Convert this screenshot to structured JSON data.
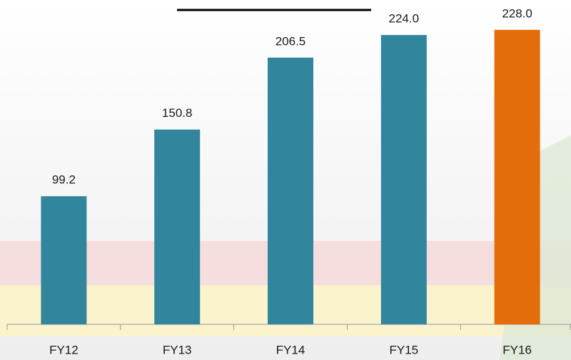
{
  "chart_data": {
    "type": "bar",
    "categories": [
      "FY12",
      "FY13",
      "FY14",
      "FY15",
      "FY16"
    ],
    "values": [
      99.2,
      150.8,
      206.5,
      224,
      228
    ],
    "value_labels": [
      "99.2",
      "150.8",
      "206.5",
      "224.0",
      "228.0"
    ],
    "colors": [
      "#31859c",
      "#31859c",
      "#31859c",
      "#31859c",
      "#e46c0a"
    ],
    "ylim": [
      0,
      250
    ]
  }
}
